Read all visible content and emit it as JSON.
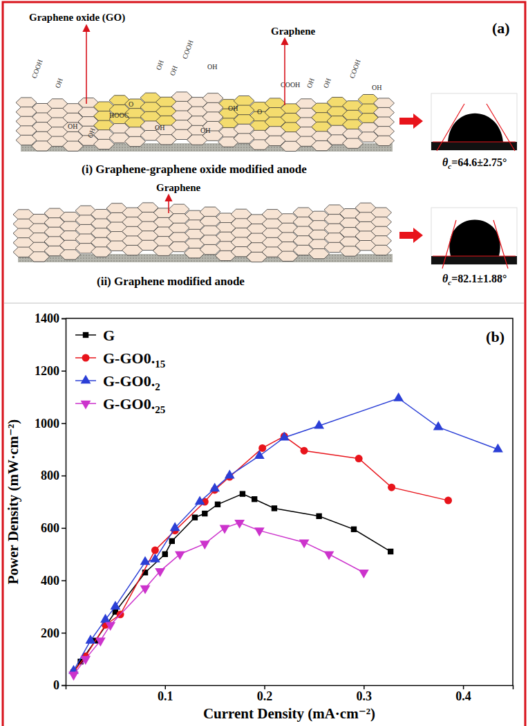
{
  "panel_a": {
    "letter": "(a)",
    "rows": [
      {
        "caption": "(i) Graphene-graphene oxide modified anode",
        "callouts": [
          "Graphene oxide (GO)",
          "Graphene"
        ],
        "groups": [
          "COOH",
          "OH",
          "OH",
          "OH",
          "COOH",
          "OH",
          "HOOC",
          "O",
          "OH",
          "OH",
          "OH",
          "O",
          "COOH",
          "OH",
          "OH",
          "COOH",
          "OH",
          "OH",
          "OH"
        ],
        "contact_angle": {
          "symbol": "θ",
          "sub": "c",
          "value": "=64.6±2.75°"
        }
      },
      {
        "caption": "(ii) Graphene modified anode",
        "callouts": [
          "Graphene"
        ],
        "contact_angle": {
          "symbol": "θ",
          "sub": "c",
          "value": "=82.1±1.88°"
        }
      }
    ]
  },
  "chart_data": {
    "type": "line",
    "annotation": "(b)",
    "x_label": "Current Density (mA·cm⁻²)",
    "y_label": "Power Density (mW·cm⁻²)",
    "xlim": [
      0,
      0.45
    ],
    "xticks": [
      0.1,
      0.2,
      0.3,
      0.4
    ],
    "ylim": [
      0,
      1400
    ],
    "yticks": [
      0,
      200,
      400,
      600,
      800,
      1000,
      1200,
      1400
    ],
    "legend": "upper left",
    "series": [
      {
        "name": "G",
        "color": "#000000",
        "marker": "square",
        "line_style": "solid",
        "x": [
          0.008,
          0.015,
          0.03,
          0.05,
          0.08,
          0.1,
          0.107,
          0.13,
          0.14,
          0.153,
          0.178,
          0.19,
          0.21,
          0.255,
          0.29,
          0.327
        ],
        "values": [
          50,
          90,
          170,
          280,
          430,
          500,
          550,
          640,
          655,
          690,
          730,
          710,
          675,
          645,
          595,
          510
        ]
      },
      {
        "name": "G-GO0.15",
        "color": "#e8141b",
        "marker": "circle",
        "line_style": "solid",
        "x": [
          0.008,
          0.02,
          0.04,
          0.055,
          0.09,
          0.11,
          0.14,
          0.15,
          0.165,
          0.198,
          0.22,
          0.24,
          0.295,
          0.328,
          0.385
        ],
        "values": [
          50,
          110,
          230,
          270,
          515,
          590,
          700,
          745,
          795,
          905,
          950,
          895,
          865,
          755,
          705
        ]
      },
      {
        "name": "G-GO0.2",
        "color": "#2b3fd6",
        "marker": "triangle",
        "line_style": "solid",
        "x": [
          0.008,
          0.025,
          0.04,
          0.05,
          0.08,
          0.09,
          0.11,
          0.135,
          0.15,
          0.165,
          0.195,
          0.22,
          0.255,
          0.335,
          0.375,
          0.435
        ],
        "values": [
          55,
          170,
          250,
          300,
          470,
          480,
          600,
          700,
          750,
          800,
          875,
          945,
          990,
          1095,
          985,
          900
        ]
      },
      {
        "name": "G-GO0.25",
        "color": "#cc33cc",
        "marker": "triangle-down",
        "line_style": "solid",
        "x": [
          0.008,
          0.02,
          0.035,
          0.045,
          0.08,
          0.095,
          0.115,
          0.14,
          0.16,
          0.175,
          0.195,
          0.24,
          0.265,
          0.3
        ],
        "values": [
          40,
          100,
          170,
          230,
          370,
          435,
          500,
          540,
          600,
          620,
          590,
          545,
          500,
          430
        ]
      }
    ]
  }
}
